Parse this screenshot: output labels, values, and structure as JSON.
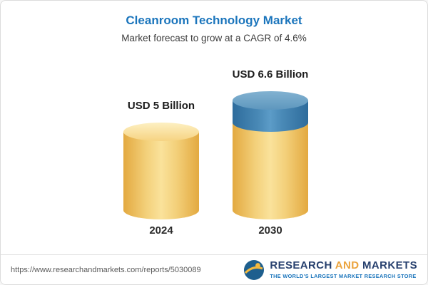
{
  "chart_data": {
    "type": "bar",
    "title": "Cleanroom Technology Market",
    "subtitle": "Market forecast to grow at a CAGR of 4.6%",
    "categories": [
      "2024",
      "2030"
    ],
    "values": [
      5,
      6.6
    ],
    "value_labels": [
      "USD 5 Billion",
      "USD 6.6 Billion"
    ],
    "unit": "USD Billion",
    "ylim": [
      0,
      6.6
    ],
    "grid": false,
    "legend": "none",
    "layout": "cylinder bars, growth segment highlighted on 2030",
    "colors": {
      "bar_base": "#F3D07A",
      "bar_growth": "#4A8AB7",
      "title": "#1B75BC"
    }
  },
  "footer": {
    "url": "https://www.researchandmarkets.com/reports/5030089",
    "logo": {
      "word1": "RESEARCH",
      "word2": "AND",
      "word3": "MARKETS",
      "tagline": "THE WORLD'S LARGEST MARKET RESEARCH STORE"
    }
  }
}
